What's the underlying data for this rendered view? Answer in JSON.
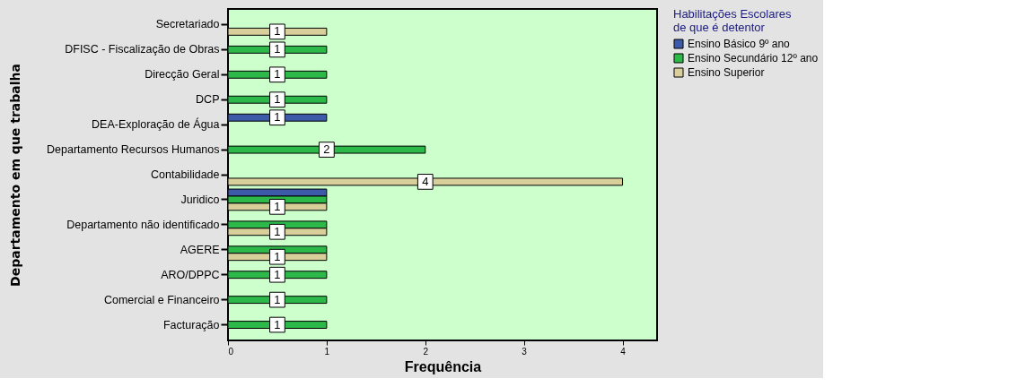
{
  "chart_data": {
    "type": "bar",
    "orientation": "horizontal",
    "xlabel": "Frequência",
    "ylabel": "Departamento em que trabalha",
    "legend_title": "Habilitações Escolares\nde que é detentor",
    "legend": "top right",
    "grid": false,
    "categories": [
      "Secretariado",
      "DFISC - Fiscalização de Obras",
      "Direcção Geral",
      "DCP",
      "DEA-Exploração de Água",
      "Departamento Recursos Humanos",
      "Contabilidade",
      "Juridico",
      "Departamento não identificado",
      "AGERE",
      "ARO/DPPC",
      "Comercial e Financeiro",
      "Facturação"
    ],
    "series": [
      {
        "name": "Ensino Básico 9º ano",
        "color": "#3c5aa8",
        "values": [
          null,
          null,
          null,
          null,
          1,
          null,
          null,
          1,
          null,
          null,
          null,
          null,
          null
        ],
        "value_labels": [
          null,
          null,
          null,
          null,
          "1",
          null,
          null,
          null,
          null,
          null,
          null,
          null,
          null
        ]
      },
      {
        "name": "Ensino Secundário 12º ano",
        "color": "#2db84a",
        "values": [
          null,
          1,
          1,
          1,
          null,
          2,
          null,
          1,
          1,
          1,
          1,
          1,
          1
        ],
        "value_labels": [
          null,
          "1",
          "1",
          "1",
          null,
          "2",
          null,
          null,
          null,
          null,
          "1",
          "1",
          "1"
        ]
      },
      {
        "name": "Ensino Superior",
        "color": "#d8cf9a",
        "values": [
          1,
          null,
          null,
          null,
          null,
          null,
          4,
          1,
          1,
          1,
          null,
          null,
          null
        ],
        "value_labels": [
          "1",
          null,
          null,
          null,
          null,
          null,
          "4",
          "1",
          "1",
          "1",
          null,
          null,
          null
        ]
      }
    ],
    "xlim": [
      0,
      4.35
    ],
    "xticks": [
      0,
      1,
      2,
      3,
      4
    ]
  }
}
